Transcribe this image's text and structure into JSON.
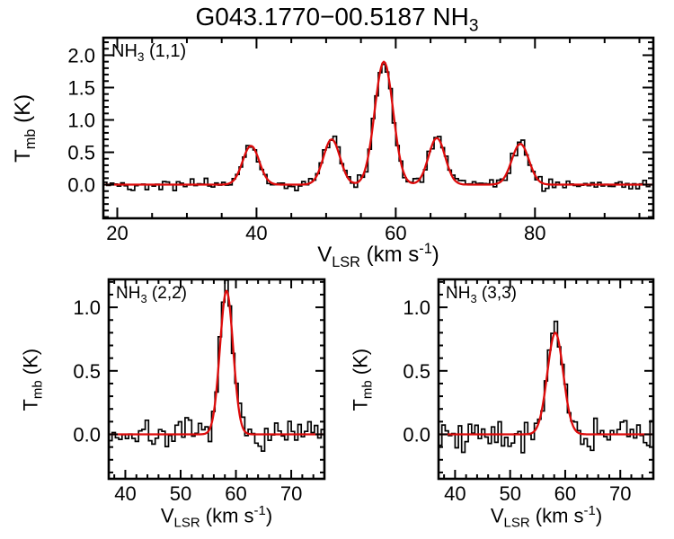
{
  "title": "G043.1770−00.5187 NH_{3}",
  "colors": {
    "data": "#000000",
    "fit": "#dd0b0b",
    "frame": "#000000",
    "background": "#ffffff"
  },
  "chart_data": [
    {
      "type": "line",
      "label": "NH_{3} (1,1)",
      "xlabel": "V_{LSR} (km s^{-1})",
      "ylabel": "T_{mb} (K)",
      "xlim": [
        18,
        97
      ],
      "ylim": [
        -0.52,
        2.27
      ],
      "xticks": [
        20,
        40,
        60,
        80
      ],
      "yticks": [
        0.0,
        0.5,
        1.0,
        1.5,
        2.0
      ],
      "x_minor": 5,
      "y_minor": 0.1,
      "grid": false,
      "channel_width": 0.5,
      "noise_rms": 0.045,
      "noise_seed": 42,
      "data_color": "#000000",
      "fit_color": "#dd0b0b",
      "fit_components": [
        {
          "center": 39.2,
          "amp": 0.6,
          "fwhm": 2.8
        },
        {
          "center": 50.8,
          "amp": 0.7,
          "fwhm": 2.8
        },
        {
          "center": 58.3,
          "amp": 1.9,
          "fwhm": 3.1
        },
        {
          "center": 65.9,
          "amp": 0.72,
          "fwhm": 2.8
        },
        {
          "center": 77.9,
          "amp": 0.63,
          "fwhm": 2.9
        }
      ]
    },
    {
      "type": "line",
      "label": "NH_{3} (2,2)",
      "xlabel": "V_{LSR} (km s^{-1})",
      "ylabel": "T_{mb} (K)",
      "xlim": [
        37,
        76
      ],
      "ylim": [
        -0.35,
        1.22
      ],
      "xticks": [
        40,
        50,
        60,
        70
      ],
      "yticks": [
        0.0,
        0.5,
        1.0
      ],
      "x_minor": 2,
      "y_minor": 0.1,
      "grid": false,
      "channel_width": 0.6,
      "noise_rms": 0.055,
      "noise_seed": 7,
      "data_color": "#000000",
      "fit_color": "#dd0b0b",
      "fit_components": [
        {
          "center": 58.3,
          "amp": 1.13,
          "fwhm": 2.8
        }
      ]
    },
    {
      "type": "line",
      "label": "NH_{3} (3,3)",
      "xlabel": "V_{LSR} (km s^{-1})",
      "ylabel": "T_{mb} (K)",
      "xlim": [
        37,
        76
      ],
      "ylim": [
        -0.35,
        1.22
      ],
      "xticks": [
        40,
        50,
        60,
        70
      ],
      "yticks": [
        0.0,
        0.5,
        1.0
      ],
      "x_minor": 2,
      "y_minor": 0.1,
      "grid": false,
      "channel_width": 0.6,
      "noise_rms": 0.065,
      "noise_seed": 19,
      "data_color": "#000000",
      "fit_color": "#dd0b0b",
      "fit_components": [
        {
          "center": 58.2,
          "amp": 0.8,
          "fwhm": 3.4
        }
      ]
    }
  ]
}
